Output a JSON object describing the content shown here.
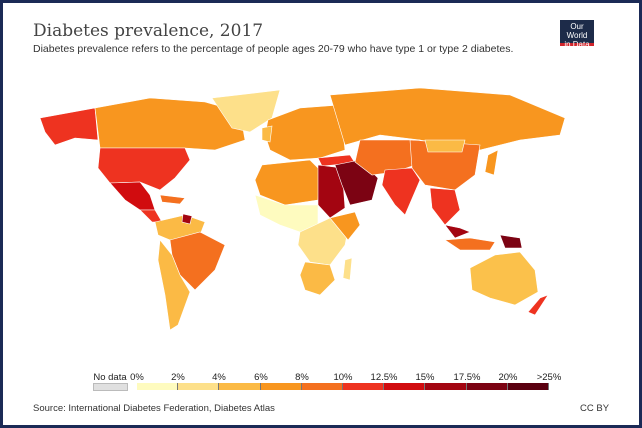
{
  "header": {
    "title": "Diabetes prevalence, 2017",
    "subtitle": "Diabetes prevalence refers to the percentage of people ages 20-79 who have type 1 or type 2 diabetes.",
    "logo_line1": "Our World",
    "logo_line2": "in Data"
  },
  "legend": {
    "no_data_label": "No data",
    "no_data_color": "#e0e0e0",
    "labels": [
      "0%",
      "2%",
      "4%",
      "6%",
      "8%",
      "10%",
      "12.5%",
      "15%",
      "17.5%",
      "20%",
      ">25%"
    ],
    "colors": [
      "#fefbbf",
      "#fde08a",
      "#fbba45",
      "#f8961f",
      "#f4701f",
      "#ee3320",
      "#d10c0f",
      "#a30511",
      "#7c0313",
      "#5a0010"
    ]
  },
  "footer": {
    "source": "Source: International Diabetes Federation, Diabetes Atlas",
    "license": "CC BY"
  }
}
